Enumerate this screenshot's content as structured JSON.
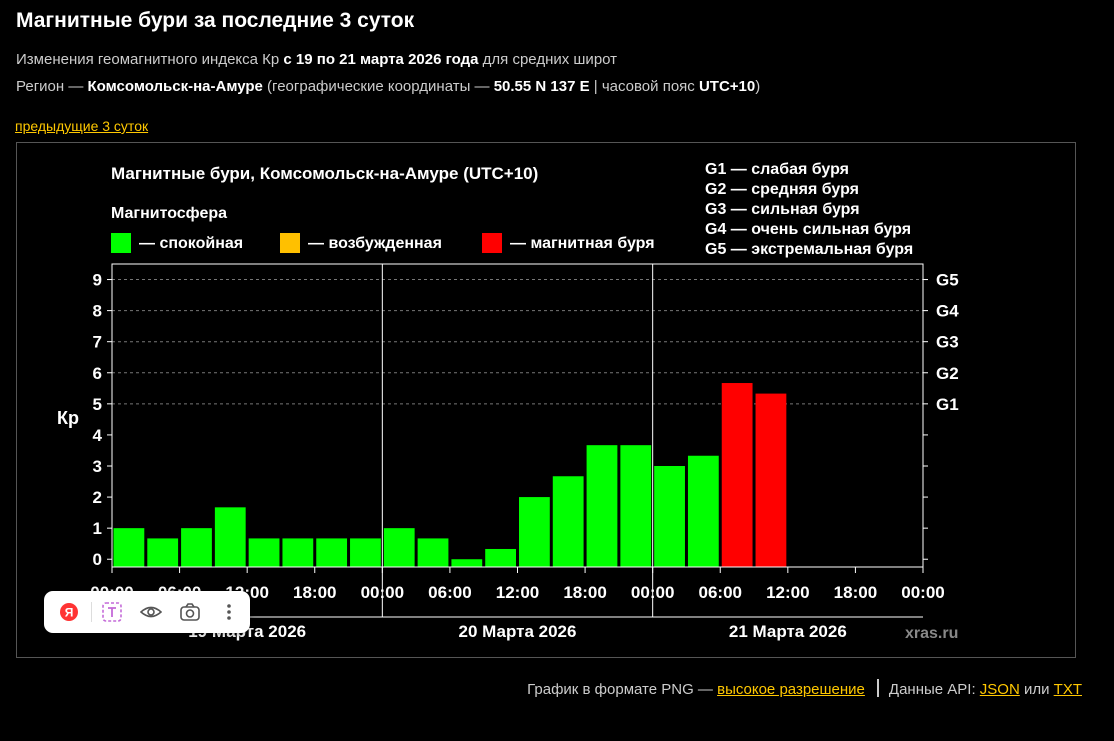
{
  "page": {
    "title": "Магнитные бури за последние 3 суток",
    "line1_pre": "Изменения геомагнитного индекса Кр ",
    "line1_bold": "с 19 по 21 марта 2026 года",
    "line1_post": " для средних широт",
    "line2_pre": "Регион — ",
    "line2_city": "Комсомольск-на-Амуре",
    "line2_mid": " (географические координаты — ",
    "line2_coords": "50.55 N 137 E",
    "line2_mid2": " | часовой пояс ",
    "line2_tz": "UTC+10",
    "line2_post": ")",
    "prev_link": "предыдущие 3 суток"
  },
  "footer": {
    "png_text": "График в формате PNG — ",
    "hires_link": "высокое разрешение",
    "api_text": "Данные API: ",
    "json_link": "JSON",
    "or_text": " или ",
    "txt_link": "TXT"
  },
  "colors": {
    "calm": "#00ff00",
    "excited": "#ffc000",
    "storm": "#ff0000",
    "link": "#ffc800"
  },
  "toolbar": {
    "icons": [
      "yandex-logo-icon",
      "text-translate-icon",
      "eye-icon",
      "camera-icon",
      "more-vertical-icon"
    ]
  },
  "chart_data": {
    "type": "bar",
    "title": "Магнитные бури, Комсомольск-на-Амуре (UTC+10)",
    "legend_title": "Магнитосфера",
    "legend": [
      {
        "label": "— спокойная",
        "color": "#00ff00"
      },
      {
        "label": "— возбужденная",
        "color": "#ffc000"
      },
      {
        "label": "— магнитная буря",
        "color": "#ff0000"
      }
    ],
    "g_scale": [
      "G1 — слабая буря",
      "G2 — средняя буря",
      "G3 — сильная буря",
      "G4 — очень сильная буря",
      "G5 — экстремальная буря"
    ],
    "ylabel": "Кр",
    "ylim": [
      0,
      9
    ],
    "yticks": [
      "0",
      "1",
      "2",
      "3",
      "4",
      "5",
      "6",
      "7",
      "8",
      "9"
    ],
    "right_ticks": [
      {
        "label": "G1",
        "value": 5
      },
      {
        "label": "G2",
        "value": 6
      },
      {
        "label": "G3",
        "value": 7
      },
      {
        "label": "G4",
        "value": 8
      },
      {
        "label": "G5",
        "value": 9
      }
    ],
    "xticks": [
      "00:00",
      "06:00",
      "12:00",
      "18:00",
      "00:00",
      "06:00",
      "12:00",
      "18:00",
      "00:00",
      "06:00",
      "12:00",
      "18:00",
      "00:00"
    ],
    "day_labels": [
      "19 Марта 2026",
      "20 Марта 2026",
      "21 Марта 2026"
    ],
    "watermark": "xras.ru",
    "grid": "dashed horizontal at Kp 6, 7, 8, 9",
    "bars": [
      {
        "start": 0,
        "kp": 1.0,
        "level": "calm"
      },
      {
        "start": 3,
        "kp": 0.67,
        "level": "calm"
      },
      {
        "start": 6,
        "kp": 1.0,
        "level": "calm"
      },
      {
        "start": 9,
        "kp": 1.67,
        "level": "calm"
      },
      {
        "start": 12,
        "kp": 0.67,
        "level": "calm"
      },
      {
        "start": 15,
        "kp": 0.67,
        "level": "calm"
      },
      {
        "start": 18,
        "kp": 0.67,
        "level": "calm"
      },
      {
        "start": 21,
        "kp": 0.67,
        "level": "calm"
      },
      {
        "start": 24,
        "kp": 1.0,
        "level": "calm"
      },
      {
        "start": 27,
        "kp": 0.67,
        "level": "calm"
      },
      {
        "start": 30,
        "kp": 0.0,
        "level": "calm"
      },
      {
        "start": 33,
        "kp": 0.33,
        "level": "calm"
      },
      {
        "start": 36,
        "kp": 2.0,
        "level": "calm"
      },
      {
        "start": 39,
        "kp": 2.67,
        "level": "calm"
      },
      {
        "start": 42,
        "kp": 3.67,
        "level": "calm"
      },
      {
        "start": 45,
        "kp": 3.67,
        "level": "calm"
      },
      {
        "start": 48,
        "kp": 3.0,
        "level": "calm"
      },
      {
        "start": 51,
        "kp": 3.33,
        "level": "calm"
      },
      {
        "start": 54,
        "kp": 5.67,
        "level": "storm"
      },
      {
        "start": 57,
        "kp": 5.33,
        "level": "storm"
      }
    ]
  }
}
